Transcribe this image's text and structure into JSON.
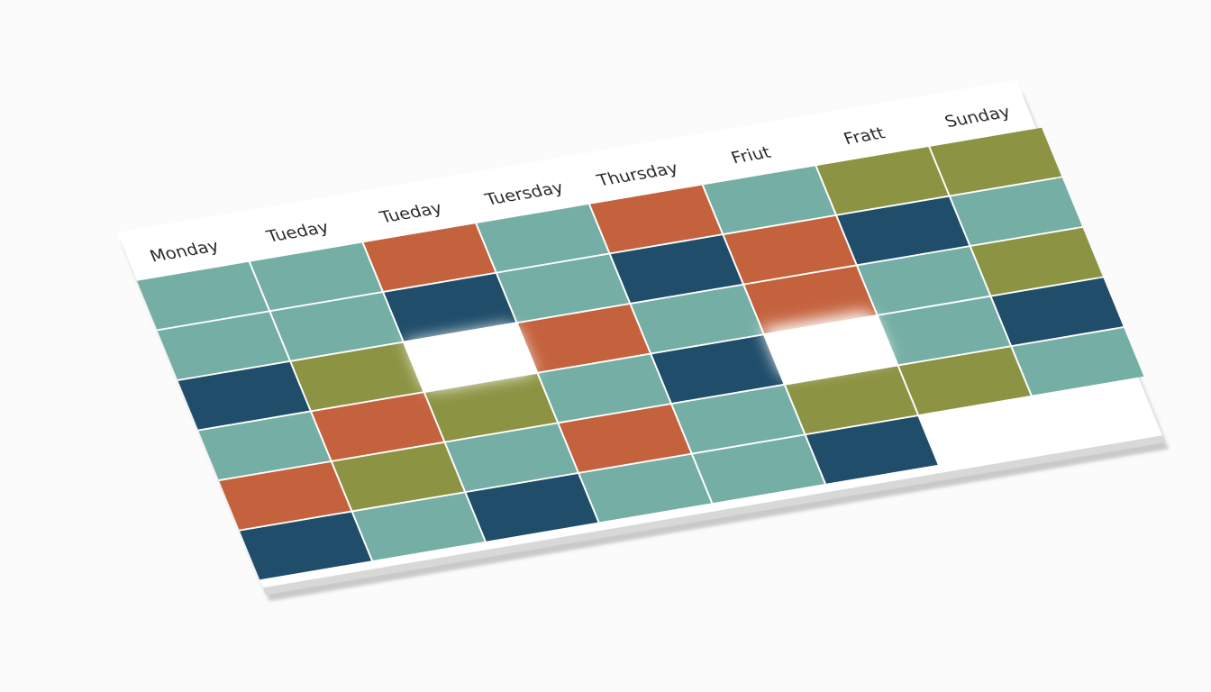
{
  "day_labels": [
    "Monday",
    "Tueday",
    "Tueday",
    "Tuersday",
    "Thursday",
    "Friut",
    "Fratt",
    "Sunday"
  ],
  "grid": {
    "columns": 8,
    "rows": 6,
    "colors": {
      "teal": "#74aea4",
      "red": "#c4623d",
      "navy": "#1f4d6a",
      "olive": "#8c9343",
      "board": "#ffffff"
    },
    "cells": [
      [
        "teal",
        "teal",
        "red",
        "teal",
        "red",
        "teal",
        "olive",
        "olive"
      ],
      [
        "teal",
        "teal",
        "navy",
        "teal",
        "navy",
        "red",
        "navy",
        "teal"
      ],
      [
        "navy",
        "olive",
        "empty",
        "red",
        "teal",
        "red",
        "teal",
        "olive"
      ],
      [
        "teal",
        "red",
        "olive",
        "teal",
        "navy",
        "empty",
        "teal",
        "navy"
      ],
      [
        "red",
        "olive",
        "teal",
        "red",
        "teal",
        "olive",
        "olive",
        "teal"
      ],
      [
        "navy",
        "teal",
        "navy",
        "teal",
        "teal",
        "navy",
        "empty",
        "empty"
      ]
    ]
  }
}
